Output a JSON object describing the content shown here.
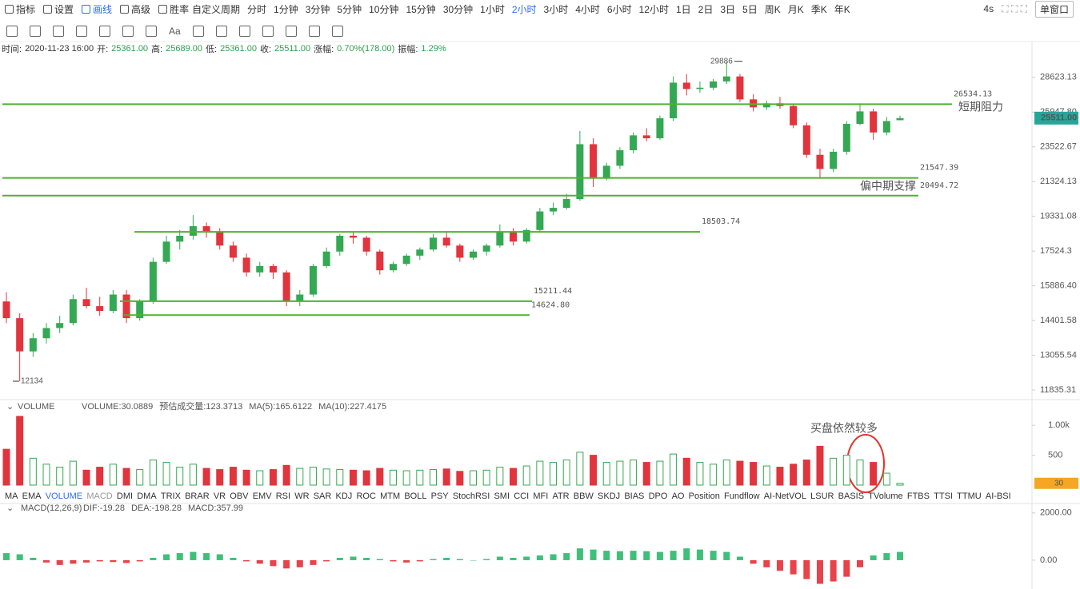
{
  "toolbar": {
    "left": [
      "指标",
      "设置",
      "画线",
      "高级",
      "胜率"
    ],
    "custom_period": "自定义周期",
    "periods": [
      "分时",
      "1分钟",
      "3分钟",
      "5分钟",
      "10分钟",
      "15分钟",
      "30分钟",
      "1小时",
      "2小时",
      "3小时",
      "4小时",
      "6小时",
      "12小时",
      "1日",
      "2日",
      "3日",
      "5日",
      "周K",
      "月K",
      "季K",
      "年K"
    ],
    "refresh": "4s",
    "window": "单窗口",
    "font_tool": "Aa"
  },
  "info": [
    {
      "label": "时间:",
      "value": "2020-11-23 16:00"
    },
    {
      "label": "开:",
      "value": "25361.00"
    },
    {
      "label": "高:",
      "value": "25689.00"
    },
    {
      "label": "低:",
      "value": "25361.00"
    },
    {
      "label": "收:",
      "value": "25511.00"
    },
    {
      "label": "涨幅:",
      "value": "0.70%(178.00)"
    },
    {
      "label": "振幅:",
      "value": "1.29%"
    }
  ],
  "chart_data": [
    {
      "type": "candlestick",
      "log": true,
      "up_color": "#35a853",
      "down_color": "#e2343c",
      "level_color": "#4fb22f",
      "ylim": [
        11520,
        31600
      ],
      "yticks": [
        28623.13,
        {
          "value": 25947.8,
          "label": "25947.80"
        },
        23522.67,
        21324.13,
        19331.08,
        17524.3,
        {
          "value": 15886.4,
          "label": "15886.40"
        },
        14401.58,
        13055.54,
        11835.31
      ],
      "candles": [
        [
          15200,
          15600,
          14300,
          14500
        ],
        [
          14500,
          14700,
          12134,
          13200
        ],
        [
          13200,
          13900,
          13000,
          13700
        ],
        [
          13700,
          14300,
          13500,
          14100
        ],
        [
          14100,
          14600,
          13900,
          14300
        ],
        [
          14300,
          15500,
          14200,
          15300
        ],
        [
          15300,
          15800,
          14900,
          15000
        ],
        [
          15000,
          15400,
          14600,
          14800
        ],
        [
          14800,
          15700,
          14700,
          15500
        ],
        [
          15500,
          15700,
          14300,
          14500
        ],
        [
          14500,
          15300,
          14400,
          15200
        ],
        [
          15200,
          17200,
          15100,
          17000
        ],
        [
          17000,
          18300,
          16900,
          18000
        ],
        [
          18000,
          18600,
          17600,
          18300
        ],
        [
          18300,
          19400,
          18100,
          18800
        ],
        [
          18800,
          19000,
          18200,
          18500
        ],
        [
          18500,
          18700,
          17600,
          17800
        ],
        [
          17800,
          18000,
          17000,
          17200
        ],
        [
          17200,
          17400,
          16300,
          16500
        ],
        [
          16500,
          17000,
          16300,
          16800
        ],
        [
          16800,
          16900,
          16200,
          16500
        ],
        [
          16500,
          16600,
          15000,
          15200
        ],
        [
          15200,
          15700,
          15000,
          15500
        ],
        [
          15500,
          16900,
          15400,
          16800
        ],
        [
          16800,
          17700,
          16700,
          17500
        ],
        [
          17500,
          18400,
          17300,
          18300
        ],
        [
          18300,
          18500,
          17900,
          18200
        ],
        [
          18200,
          18300,
          17300,
          17500
        ],
        [
          17500,
          17600,
          16400,
          16600
        ],
        [
          16600,
          17000,
          16500,
          16900
        ],
        [
          16900,
          17400,
          16800,
          17300
        ],
        [
          17300,
          17700,
          17100,
          17600
        ],
        [
          17600,
          18400,
          17500,
          18200
        ],
        [
          18200,
          18500,
          17700,
          17800
        ],
        [
          17800,
          17900,
          17000,
          17200
        ],
        [
          17200,
          17600,
          17100,
          17500
        ],
        [
          17500,
          17900,
          17300,
          17800
        ],
        [
          17800,
          18900,
          17700,
          18500
        ],
        [
          18500,
          18700,
          17800,
          18000
        ],
        [
          18000,
          18700,
          17900,
          18600
        ],
        [
          18600,
          19800,
          18500,
          19600
        ],
        [
          19600,
          20100,
          19400,
          19800
        ],
        [
          19800,
          20600,
          19700,
          20300
        ],
        [
          20300,
          24600,
          20200,
          23700
        ],
        [
          23700,
          24100,
          21000,
          21500
        ],
        [
          21500,
          22500,
          21400,
          22300
        ],
        [
          22300,
          23500,
          22100,
          23300
        ],
        [
          23300,
          24500,
          23100,
          24300
        ],
        [
          24300,
          24800,
          23900,
          24100
        ],
        [
          24100,
          25700,
          24000,
          25500
        ],
        [
          25500,
          28700,
          25300,
          28200
        ],
        [
          28200,
          28900,
          27200,
          27700
        ],
        [
          27700,
          28300,
          27400,
          27800
        ],
        [
          27800,
          28500,
          27600,
          28300
        ],
        [
          28300,
          29886,
          28100,
          28700
        ],
        [
          28700,
          28900,
          26700,
          26900
        ],
        [
          26900,
          27300,
          26000,
          26300
        ],
        [
          26300,
          26800,
          26100,
          26600
        ],
        [
          26600,
          27100,
          26200,
          26400
        ],
        [
          26400,
          26500,
          24800,
          25000
        ],
        [
          25000,
          25200,
          22800,
          23000
        ],
        [
          23000,
          23400,
          21500,
          22100
        ],
        [
          22100,
          23400,
          21900,
          23200
        ],
        [
          23200,
          25300,
          23000,
          25100
        ],
        [
          25100,
          26600,
          25000,
          26000
        ],
        [
          26000,
          26200,
          24000,
          24500
        ],
        [
          24500,
          25600,
          24300,
          25300
        ],
        [
          25361,
          25689,
          25361,
          25511
        ]
      ],
      "levels": [
        26534.13,
        21547.39,
        20494.72,
        18503.74,
        15211.44,
        {
          "value": 14624.8,
          "label": "14624.80"
        }
      ],
      "high_marker": 29886,
      "low_marker": 12134,
      "last_price": {
        "value": 25511,
        "label": "25511.00"
      },
      "annotations": [
        "短期阻力",
        "偏中期支撑",
        "买盘依然较多"
      ]
    },
    {
      "type": "bar",
      "name": "VOLUME",
      "header": [
        "VOLUME:30.0889",
        "预估成交量:123.3713",
        "MA(5):165.6122",
        "MA(10):227.4175"
      ],
      "ylim": [
        0,
        1230
      ],
      "yticks": [
        500,
        {
          "value": 1000,
          "label": "1.00k"
        }
      ],
      "last_volume": 30,
      "values": [
        600,
        1150,
        450,
        350,
        300,
        400,
        250,
        300,
        350,
        280,
        260,
        420,
        380,
        300,
        350,
        280,
        260,
        300,
        250,
        240,
        260,
        330,
        280,
        300,
        270,
        260,
        250,
        240,
        280,
        250,
        240,
        250,
        260,
        270,
        230,
        240,
        250,
        300,
        280,
        320,
        400,
        380,
        420,
        550,
        500,
        380,
        400,
        420,
        380,
        400,
        520,
        450,
        380,
        350,
        420,
        400,
        380,
        320,
        300,
        350,
        420,
        650,
        450,
        500,
        420,
        380,
        200,
        30
      ],
      "tabs": [
        "MA",
        "EMA",
        "VOLUME",
        "MACD",
        "DMI",
        "DMA",
        "TRIX",
        "BRAR",
        "VR",
        "OBV",
        "EMV",
        "RSI",
        "WR",
        "SAR",
        "KDJ",
        "ROC",
        "MTM",
        "BOLL",
        "PSY",
        "StochRSI",
        "SMI",
        "CCI",
        "MFI",
        "ATR",
        "BBW",
        "SKDJ",
        "BIAS",
        "DPO",
        "AO",
        "Position",
        "Fundflow",
        "AI-NetVOL",
        "LSUR",
        "BASIS",
        "TVolume",
        "FTBS",
        "TTSI",
        "TTMU",
        "AI-BSI"
      ]
    },
    {
      "type": "bar",
      "name": "MACD(12,26,9)",
      "header": [
        "DIF:-19.28",
        "DEA:-198.28",
        "MACD:357.99"
      ],
      "ylim": [
        -1220,
        2400
      ],
      "yticks": [
        {
          "value": 2000,
          "label": "2000.00"
        },
        {
          "value": 0,
          "label": "0.00"
        }
      ],
      "values": [
        300,
        250,
        100,
        -100,
        -200,
        -150,
        -100,
        -50,
        -80,
        -120,
        -50,
        100,
        250,
        300,
        350,
        300,
        250,
        100,
        -50,
        -150,
        -250,
        -350,
        -300,
        -200,
        -50,
        100,
        150,
        100,
        50,
        -50,
        -100,
        -50,
        50,
        100,
        50,
        0,
        50,
        150,
        100,
        150,
        200,
        250,
        300,
        500,
        450,
        400,
        380,
        400,
        380,
        350,
        400,
        500,
        450,
        400,
        350,
        150,
        -150,
        -300,
        -450,
        -600,
        -800,
        -1000,
        -900,
        -700,
        -300,
        200,
        300,
        350
      ]
    }
  ]
}
